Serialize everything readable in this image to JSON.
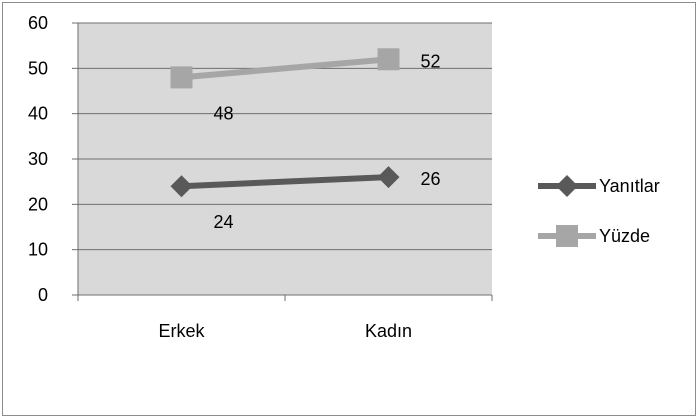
{
  "chart_data": {
    "type": "line",
    "categories": [
      "Erkek",
      "Kadın"
    ],
    "series": [
      {
        "name": "Yanıtlar",
        "values": [
          24,
          26
        ],
        "color": "#595959",
        "marker": "diamond"
      },
      {
        "name": "Yüzde",
        "values": [
          48,
          52
        ],
        "color": "#a6a6a6",
        "marker": "square"
      }
    ],
    "ylim": [
      0,
      60
    ],
    "yticks": [
      "0",
      "10",
      "20",
      "30",
      "40",
      "50",
      "60"
    ],
    "grid": true,
    "plot_background": "#d9d9d9",
    "legend": "right",
    "title": "",
    "xlabel": "",
    "ylabel": ""
  }
}
